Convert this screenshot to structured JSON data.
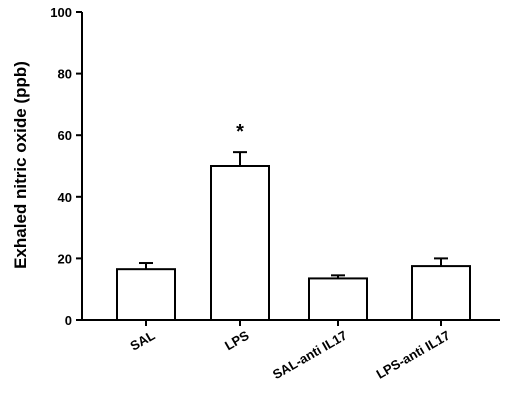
{
  "chart_data": {
    "type": "bar",
    "title": "",
    "xlabel": "",
    "ylabel": "Exhaled nitric oxide (ppb)",
    "ylim": [
      0,
      100
    ],
    "yticks": [
      0,
      20,
      40,
      60,
      80,
      100
    ],
    "categories": [
      "SAL",
      "LPS",
      "SAL-anti IL17",
      "LPS-anti IL17"
    ],
    "values": [
      16.5,
      50,
      13.5,
      17.5
    ],
    "error_bars": [
      2,
      4.5,
      1,
      2.5
    ],
    "annotations": [
      {
        "category": "LPS",
        "text": "*"
      }
    ],
    "grid": false,
    "colors": {
      "bar_fill": "#ffffff",
      "bar_stroke": "#000000"
    }
  }
}
